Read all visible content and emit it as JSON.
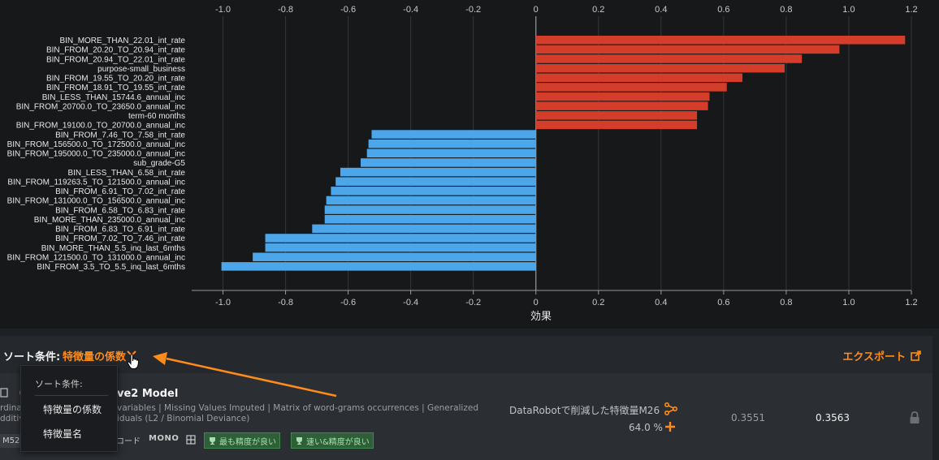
{
  "chart_data": {
    "type": "bar",
    "orientation": "horizontal",
    "xlabel": "効果",
    "xlim": [
      -1.1,
      1.2
    ],
    "xticks": [
      -1.0,
      -0.8,
      -0.6,
      -0.4,
      -0.2,
      0,
      0.2,
      0.4,
      0.6,
      0.8,
      1.0,
      1.2
    ],
    "xtick_labels": [
      "-1.0",
      "-0.8",
      "-0.6",
      "-0.4",
      "-0.2",
      "0",
      "0.2",
      "0.4",
      "0.6",
      "0.8",
      "1.0",
      "1.2"
    ],
    "grid": true,
    "categories": [
      "BIN_MORE_THAN_22.01_int_rate",
      "BIN_FROM_20.20_TO_20.94_int_rate",
      "BIN_FROM_20.94_TO_22.01_int_rate",
      "purpose-small_business",
      "BIN_FROM_19.55_TO_20.20_int_rate",
      "BIN_FROM_18.91_TO_19.55_int_rate",
      "BIN_LESS_THAN_15744.6_annual_inc",
      "BIN_FROM_20700.0_TO_23650.0_annual_inc",
      "term-60 months",
      "BIN_FROM_19100.0_TO_20700.0_annual_inc",
      "BIN_FROM_7.46_TO_7.58_int_rate",
      "BIN_FROM_156500.0_TO_172500.0_annual_inc",
      "BIN_FROM_195000.0_TO_235000.0_annual_inc",
      "sub_grade-G5",
      "BIN_LESS_THAN_6.58_int_rate",
      "BIN_FROM_119263.5_TO_121500.0_annual_inc",
      "BIN_FROM_6.91_TO_7.02_int_rate",
      "BIN_FROM_131000.0_TO_156500.0_annual_inc",
      "BIN_FROM_6.58_TO_6.83_int_rate",
      "BIN_MORE_THAN_235000.0_annual_inc",
      "BIN_FROM_6.83_TO_6.91_int_rate",
      "BIN_FROM_7.02_TO_7.46_int_rate",
      "BIN_MORE_THAN_5.5_inq_last_6mths",
      "BIN_FROM_121500.0_TO_131000.0_annual_inc",
      "BIN_FROM_3.5_TO_5.5_inq_last_6mths"
    ],
    "values": [
      1.18,
      0.97,
      0.85,
      0.795,
      0.66,
      0.61,
      0.555,
      0.55,
      0.515,
      0.515,
      -0.525,
      -0.535,
      -0.54,
      -0.56,
      -0.625,
      -0.64,
      -0.655,
      -0.67,
      -0.675,
      -0.675,
      -0.715,
      -0.865,
      -0.865,
      -0.905,
      -1.005
    ],
    "colors": {
      "positive": "#d43d2a",
      "negative": "#4ca6ea"
    }
  },
  "sort_bar": {
    "label": "ソート条件:",
    "value": "特徴量の係数",
    "export_label": "エクスポート"
  },
  "dropdown": {
    "title": "ソート条件:",
    "items": [
      "特徴量の係数",
      "特徴量名"
    ]
  },
  "model_row": {
    "title": "ve2 Model",
    "desc_line1": "variables | Missing Values Imputed | Matrix of word-grams occurrences | Generalized",
    "desc_line2": "iduals (L2 / Binomial Deviance)",
    "left_fragment1": "rdinal",
    "left_fragment2": "dditiv",
    "tag_m": "M52",
    "tag_code": "コード",
    "tag_mono": "MONO",
    "badges": [
      "最も精度が良い",
      "速い&精度が良い"
    ],
    "dr_text": "DataRobotで削減した特徴量M26",
    "pct_text": "64.0 %",
    "score_1": "0.3551",
    "score_2": "0.3563"
  },
  "colors": {
    "accent": "#ff8c1a",
    "badge_bg": "#2f5e38"
  }
}
